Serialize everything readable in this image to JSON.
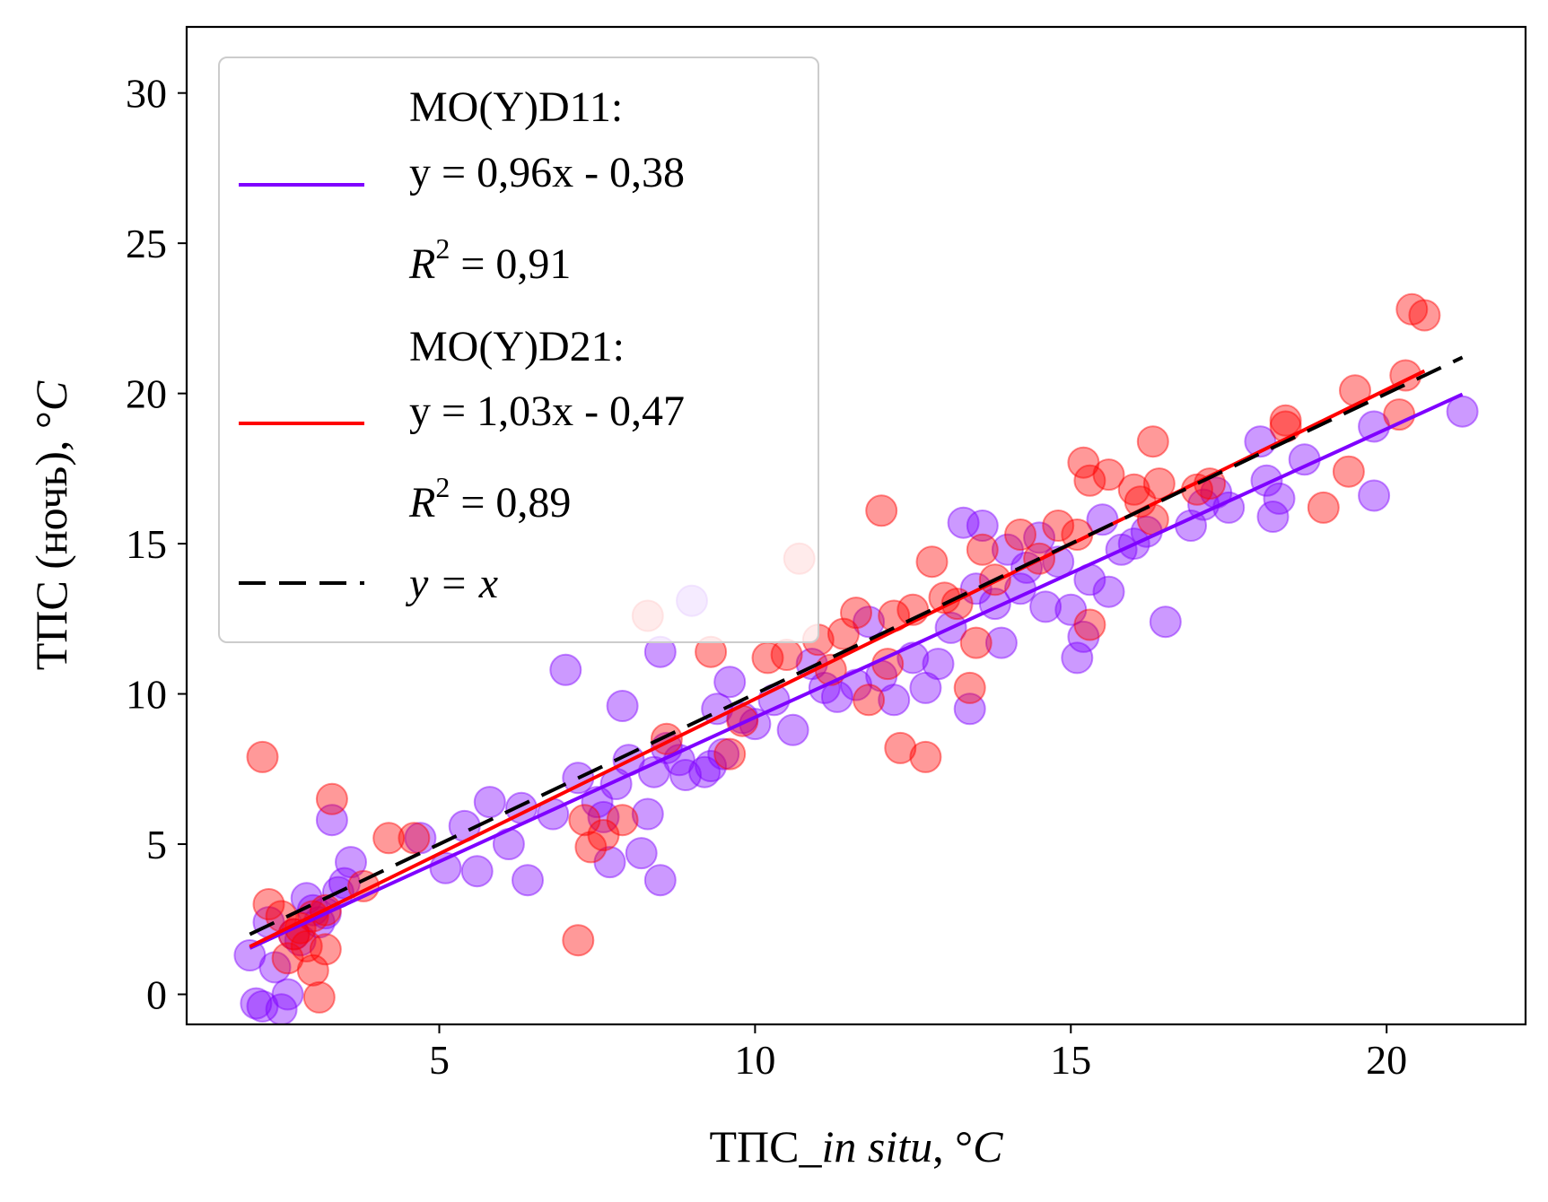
{
  "chart_data": {
    "type": "scatter",
    "xlabel": {
      "prefix": "ТПС_",
      "italic": "in situ",
      "suffix": ", °",
      "unit_italic": "C"
    },
    "ylabel": {
      "prefix": "ТПС (ночь), °",
      "unit_italic": "C"
    },
    "xlim": [
      1.0,
      22.2
    ],
    "ylim": [
      -1.0,
      32.2
    ],
    "xticks": [
      5,
      10,
      15,
      20
    ],
    "yticks": [
      0,
      5,
      10,
      15,
      20,
      25,
      30
    ],
    "grid": false,
    "legend_position": "upper-left",
    "series": [
      {
        "name": "MO(Y)D11:",
        "color": "#7f00ff",
        "fit_label": "y = 0,96x - 0,38",
        "r2_label": {
          "symbol": "R",
          "sup": "2",
          "value": " = 0,91"
        },
        "fit": {
          "slope": 0.96,
          "intercept": -0.38,
          "x_range": [
            2.0,
            21.2
          ]
        },
        "points": [
          [
            2.0,
            1.3
          ],
          [
            2.1,
            -0.3
          ],
          [
            2.2,
            -0.4
          ],
          [
            2.3,
            2.4
          ],
          [
            2.4,
            0.9
          ],
          [
            2.5,
            -0.5
          ],
          [
            2.6,
            0.0
          ],
          [
            2.7,
            2.0
          ],
          [
            2.8,
            1.8
          ],
          [
            2.9,
            3.2
          ],
          [
            3.0,
            2.8
          ],
          [
            3.1,
            2.4
          ],
          [
            3.2,
            2.7
          ],
          [
            3.3,
            5.8
          ],
          [
            3.4,
            3.4
          ],
          [
            3.5,
            3.7
          ],
          [
            3.6,
            4.4
          ],
          [
            4.7,
            5.2
          ],
          [
            5.1,
            4.2
          ],
          [
            5.4,
            5.6
          ],
          [
            5.6,
            4.1
          ],
          [
            5.8,
            6.4
          ],
          [
            6.1,
            5.0
          ],
          [
            6.3,
            6.2
          ],
          [
            6.4,
            3.8
          ],
          [
            6.8,
            6.0
          ],
          [
            7.0,
            10.8
          ],
          [
            7.2,
            7.2
          ],
          [
            7.5,
            6.4
          ],
          [
            7.6,
            5.9
          ],
          [
            7.7,
            4.4
          ],
          [
            7.8,
            7.0
          ],
          [
            7.9,
            9.6
          ],
          [
            8.0,
            7.8
          ],
          [
            8.2,
            4.7
          ],
          [
            8.3,
            6.0
          ],
          [
            8.4,
            7.4
          ],
          [
            8.5,
            3.8
          ],
          [
            8.5,
            11.4
          ],
          [
            8.6,
            8.2
          ],
          [
            8.8,
            7.8
          ],
          [
            8.9,
            7.3
          ],
          [
            9.0,
            13.1
          ],
          [
            9.2,
            7.4
          ],
          [
            9.3,
            7.6
          ],
          [
            9.4,
            9.5
          ],
          [
            9.5,
            8.0
          ],
          [
            9.6,
            10.4
          ],
          [
            9.8,
            9.2
          ],
          [
            10.0,
            9.0
          ],
          [
            10.3,
            9.8
          ],
          [
            10.6,
            8.8
          ],
          [
            10.9,
            11.0
          ],
          [
            11.1,
            10.2
          ],
          [
            11.3,
            9.9
          ],
          [
            11.6,
            10.3
          ],
          [
            11.8,
            12.4
          ],
          [
            12.0,
            10.6
          ],
          [
            12.2,
            9.8
          ],
          [
            12.5,
            11.2
          ],
          [
            12.7,
            10.2
          ],
          [
            12.9,
            11.0
          ],
          [
            13.1,
            12.2
          ],
          [
            13.3,
            15.7
          ],
          [
            13.4,
            9.5
          ],
          [
            13.5,
            13.5
          ],
          [
            13.6,
            15.6
          ],
          [
            13.8,
            13.0
          ],
          [
            13.9,
            11.7
          ],
          [
            14.0,
            14.8
          ],
          [
            14.2,
            13.5
          ],
          [
            14.3,
            14.2
          ],
          [
            14.5,
            15.2
          ],
          [
            14.6,
            12.9
          ],
          [
            14.8,
            14.4
          ],
          [
            15.0,
            12.8
          ],
          [
            15.1,
            11.2
          ],
          [
            15.2,
            11.9
          ],
          [
            15.3,
            13.8
          ],
          [
            15.5,
            15.8
          ],
          [
            15.6,
            13.4
          ],
          [
            15.8,
            14.8
          ],
          [
            16.0,
            15.0
          ],
          [
            16.2,
            15.4
          ],
          [
            16.5,
            12.4
          ],
          [
            16.9,
            15.6
          ],
          [
            17.1,
            16.3
          ],
          [
            17.3,
            16.7
          ],
          [
            17.5,
            16.2
          ],
          [
            18.0,
            18.4
          ],
          [
            18.1,
            17.1
          ],
          [
            18.2,
            15.9
          ],
          [
            18.3,
            16.5
          ],
          [
            18.7,
            17.8
          ],
          [
            19.8,
            18.9
          ],
          [
            19.8,
            16.6
          ],
          [
            21.2,
            19.4
          ]
        ]
      },
      {
        "name": "MO(Y)D21:",
        "color": "#ff0000",
        "fit_label": "y = 1,03x - 0,47",
        "r2_label": {
          "symbol": "R",
          "sup": "2",
          "value": " = 0,89"
        },
        "fit": {
          "slope": 1.03,
          "intercept": -0.47,
          "x_range": [
            2.0,
            20.6
          ]
        },
        "points": [
          [
            2.2,
            7.9
          ],
          [
            2.3,
            3.0
          ],
          [
            2.5,
            2.6
          ],
          [
            2.6,
            1.2
          ],
          [
            2.7,
            2.0
          ],
          [
            2.8,
            2.2
          ],
          [
            2.9,
            1.6
          ],
          [
            3.0,
            2.6
          ],
          [
            3.0,
            0.8
          ],
          [
            3.1,
            -0.1
          ],
          [
            3.2,
            1.5
          ],
          [
            3.2,
            2.8
          ],
          [
            3.3,
            6.5
          ],
          [
            3.8,
            3.6
          ],
          [
            4.2,
            5.2
          ],
          [
            4.6,
            5.2
          ],
          [
            7.2,
            1.8
          ],
          [
            7.3,
            5.8
          ],
          [
            7.4,
            4.9
          ],
          [
            7.6,
            5.3
          ],
          [
            7.9,
            5.8
          ],
          [
            8.3,
            12.6
          ],
          [
            8.6,
            8.5
          ],
          [
            9.3,
            11.4
          ],
          [
            9.6,
            8.0
          ],
          [
            9.8,
            9.1
          ],
          [
            10.2,
            11.2
          ],
          [
            10.5,
            11.3
          ],
          [
            10.7,
            14.5
          ],
          [
            11.0,
            11.8
          ],
          [
            11.2,
            10.8
          ],
          [
            11.4,
            12.0
          ],
          [
            11.6,
            12.7
          ],
          [
            11.8,
            9.8
          ],
          [
            12.0,
            16.1
          ],
          [
            12.1,
            11.0
          ],
          [
            12.2,
            12.6
          ],
          [
            12.3,
            8.2
          ],
          [
            12.5,
            12.8
          ],
          [
            12.7,
            7.9
          ],
          [
            12.8,
            14.4
          ],
          [
            13.0,
            13.2
          ],
          [
            13.2,
            13.0
          ],
          [
            13.4,
            10.2
          ],
          [
            13.5,
            11.7
          ],
          [
            13.6,
            14.8
          ],
          [
            13.8,
            13.8
          ],
          [
            14.2,
            15.3
          ],
          [
            14.5,
            14.5
          ],
          [
            14.8,
            15.6
          ],
          [
            15.1,
            15.3
          ],
          [
            15.2,
            17.7
          ],
          [
            15.3,
            17.1
          ],
          [
            15.3,
            12.3
          ],
          [
            15.6,
            17.3
          ],
          [
            16.0,
            16.8
          ],
          [
            16.1,
            16.4
          ],
          [
            16.3,
            15.8
          ],
          [
            16.3,
            18.4
          ],
          [
            16.4,
            17.0
          ],
          [
            17.0,
            16.8
          ],
          [
            17.2,
            17.0
          ],
          [
            18.4,
            19.1
          ],
          [
            18.4,
            18.9
          ],
          [
            19.0,
            16.2
          ],
          [
            19.4,
            17.4
          ],
          [
            19.5,
            20.1
          ],
          [
            20.2,
            19.3
          ],
          [
            20.3,
            20.6
          ],
          [
            20.4,
            22.8
          ],
          [
            20.6,
            22.6
          ]
        ]
      }
    ],
    "reference_line": {
      "label_italic": "y = x",
      "color": "#000000",
      "dash": "dashed",
      "x_range": [
        2.0,
        21.2
      ]
    }
  }
}
